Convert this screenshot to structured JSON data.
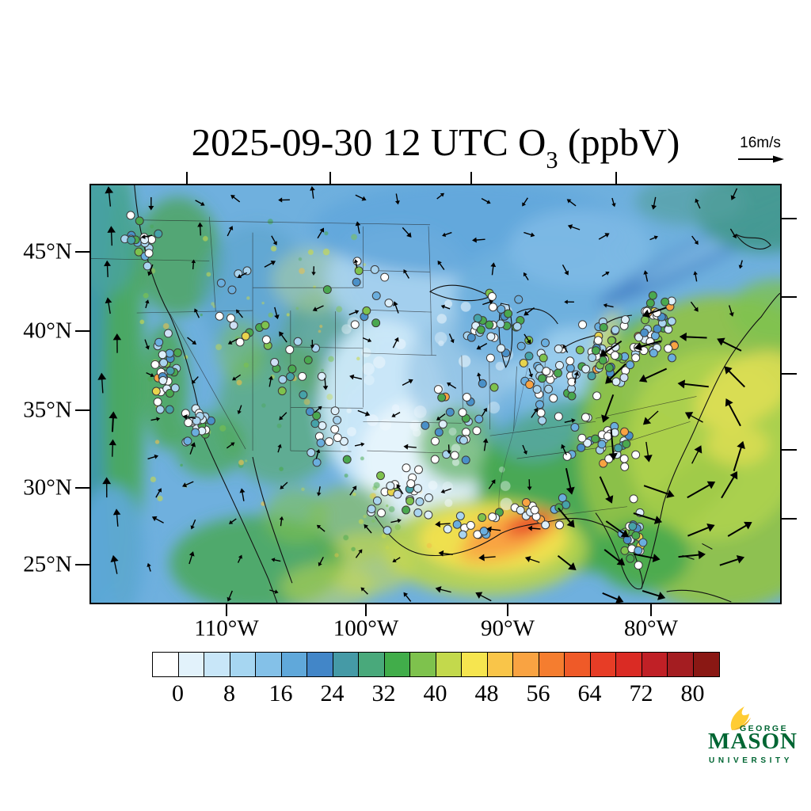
{
  "title": {
    "prefix": "2025-09-30 12 UTC O",
    "subscript": "3",
    "suffix": " (ppbV)"
  },
  "wind_reference": {
    "label": "16m/s"
  },
  "axes": {
    "lat_labels": [
      "45°N",
      "40°N",
      "35°N",
      "30°N",
      "25°N"
    ],
    "lon_labels": [
      "110°W",
      "100°W",
      "90°W",
      "80°W"
    ]
  },
  "colorbar": {
    "tick_labels": [
      "0",
      "8",
      "16",
      "24",
      "32",
      "40",
      "48",
      "56",
      "64",
      "72",
      "80"
    ],
    "box_colors": [
      "#ffffff",
      "#e2f2fb",
      "#c8e6f8",
      "#a6d6f1",
      "#84c1e8",
      "#60a8da",
      "#4286c8",
      "#459aa6",
      "#49a97b",
      "#41ad4a",
      "#7ec24d",
      "#c3d94c",
      "#f6e54f",
      "#f9c549",
      "#f9a342",
      "#f57d2f",
      "#ef5a28",
      "#e73d26",
      "#da2b24",
      "#c02026",
      "#a41d21",
      "#8a1814"
    ]
  },
  "logo": {
    "line1": "GEORGE",
    "line2": "MASON",
    "line3": "UNIVERSITY",
    "green": "#006633",
    "gold": "#ffcc33"
  },
  "chart_data": {
    "type": "heatmap",
    "title": "2025-09-30 12 UTC O3 (ppbV)",
    "variable": "surface ozone mixing ratio",
    "units": "ppbV",
    "region": "contiguous United States with surrounding ocean, Canada and Mexico margins",
    "lat_ticks_deg_n": [
      45,
      40,
      35,
      30,
      25
    ],
    "lon_ticks_deg_w": [
      110,
      100,
      90,
      80
    ],
    "contour_interval_ppbv": 4,
    "colorbar_ticks": [
      0,
      8,
      16,
      24,
      32,
      40,
      48,
      56,
      64,
      72,
      80
    ],
    "colorbar_colors": [
      "#ffffff",
      "#e2f2fb",
      "#c8e6f8",
      "#a6d6f1",
      "#84c1e8",
      "#60a8da",
      "#4286c8",
      "#459aa6",
      "#49a97b",
      "#41ad4a",
      "#7ec24d",
      "#c3d94c",
      "#f6e54f",
      "#f9c549",
      "#f9a342",
      "#f57d2f",
      "#ef5a28",
      "#e73d26",
      "#da2b24",
      "#c02026",
      "#a41d21",
      "#8a1814"
    ],
    "wind_reference_vector": "16m/s",
    "overlays": [
      "filled ozone contours",
      "wind vector arrows",
      "surface station observations shown as colored circles"
    ],
    "notable_features": [
      "high ozone plume ~48-72 ppbV over the western Gulf of Mexico with red core near the Louisiana coast",
      "broad ~32-48 ppbV yellow-green area over the western Atlantic with a cyclonic swirl and strong wind vectors",
      "clean ~8-24 ppbV light-blue band across the central plains, upper Midwest and Great Lakes",
      "teal/green 30-40 ppbV band offshore of the Pacific coast with northward winds",
      "mottled green patches 32-44 ppbV across the intermountain West, Texas and Mexico",
      "dense cluster of station circles (white/blue/green, few orange) over the eastern U.S., California and Florida"
    ]
  }
}
